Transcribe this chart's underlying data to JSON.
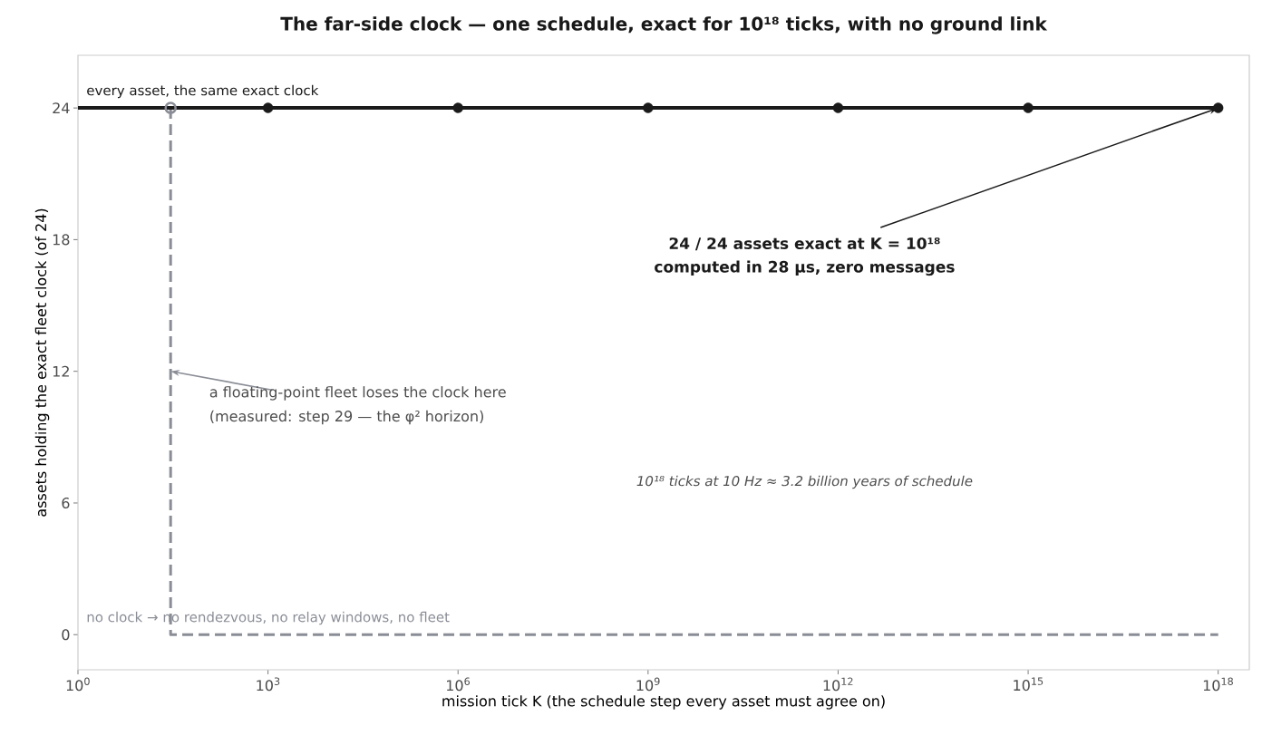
{
  "chart_data": {
    "type": "line",
    "title": "The far-side clock — one schedule, exact for 10¹⁸ ticks, with no ground link",
    "xlabel": "mission tick K  (the schedule step every asset must agree on)",
    "ylabel": "assets holding the exact fleet clock (of 24)",
    "log": "x",
    "xlim": [
      1,
      3.1e+18
    ],
    "ylim": [
      -1.6,
      26.4
    ],
    "xticks": [
      {
        "value": 1,
        "label": "10$^{0}$"
      },
      {
        "value": 1000,
        "label": "10$^{3}$"
      },
      {
        "value": 1000000,
        "label": "10$^{6}$"
      },
      {
        "value": 1000000000,
        "label": "10$^{9}$"
      },
      {
        "value": 1000000000000,
        "label": "10$^{12}$"
      },
      {
        "value": 1000000000000000,
        "label": "10$^{15}$"
      },
      {
        "value": 1000000000000000000,
        "label": "10$^{18}$"
      }
    ],
    "yticks": [
      0,
      6,
      12,
      18,
      24
    ],
    "grid": false,
    "series": [
      {
        "color": "#8a8d96",
        "line_style": "dashed",
        "x": [
          29,
          29,
          1e+18
        ],
        "values": [
          24,
          0,
          0
        ]
      },
      {
        "color": "#1a1a1a",
        "line_style": "solid",
        "x": [
          1,
          1e+18
        ],
        "values": [
          24,
          24
        ]
      },
      {
        "type": "scatter",
        "color": "#1a1a1a",
        "marker": "circle",
        "x": [
          1000.0,
          1000000.0,
          1000000000.0,
          1000000000000.0,
          1000000000000000.0,
          1e+18
        ],
        "values": [
          24,
          24,
          24,
          24,
          24,
          24
        ]
      },
      {
        "type": "scatter",
        "color": "#8a8d96",
        "marker": "circle_open",
        "x": [
          29
        ],
        "values": [
          24
        ]
      }
    ],
    "annotations": [
      "every asset, the same exact clock",
      {
        "text": "24 / 24 assets exact at K = 10¹⁸",
        "x": 1e+18,
        "y": 24
      },
      "computed in 28 μs, zero messages",
      {
        "text": "a floating-point fleet loses the clock here",
        "x": 29,
        "y": 12
      },
      "(measured: step 29 — the φ² horizon)",
      "10¹⁸ ticks at 10 Hz ≈ 3.2 billion years of schedule",
      "no clock → no rendezvous, no relay windows, no fleet"
    ]
  }
}
